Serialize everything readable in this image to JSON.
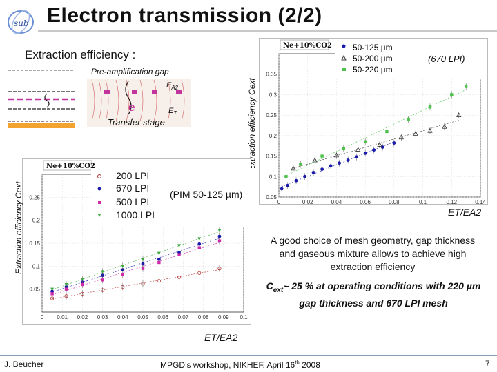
{
  "slide": {
    "title": "Electron transmission (2/2)",
    "subtitle": "Extraction efficiency :",
    "diagram": {
      "preamp_label": "Pre-amplification gap",
      "ea2_label": "E",
      "ea2_sub": "A2",
      "electron_label": "e",
      "et_label": "E",
      "et_sub": "T",
      "transfer_label": "Transfer stage"
    },
    "text_block_1": "A good choice of mesh geometry, gap thickness and gaseous mixture allows to achieve high extraction efficiency",
    "text_block_2_a": "C",
    "text_block_2_sub": "ext",
    "text_block_2_b": "~ 25 % at operating conditions with 220 µm gap thickness and 670 LPI mesh",
    "footer_left": "J. Beucher",
    "footer_center": "MPGD’s workshop, NIKHEF, April 16",
    "footer_center_sup": "th",
    "footer_center_year": " 2008",
    "page_number": "7"
  },
  "chart_data": [
    {
      "type": "scatter",
      "title": "Ne+10%CO2",
      "xlabel": "ET/EA2",
      "ylabel": "Extraction efficiency Cext",
      "xlim": [
        0,
        0.14
      ],
      "ylim": [
        0.05,
        0.4
      ],
      "x_ticks": [
        "0",
        "0.02",
        "0.04",
        "0.06",
        "0.08",
        "0.1",
        "0.12",
        "0.14"
      ],
      "y_ticks": [
        "0.35",
        "0.3",
        "0.25",
        "0.2",
        "0.15",
        "0.1",
        "0.05"
      ],
      "legend_note": "(670 LPI)",
      "series": [
        {
          "name": "50-125 µm",
          "color": "#1a1aa8",
          "marker": "circle",
          "x": [
            0.002,
            0.006,
            0.012,
            0.018,
            0.024,
            0.03,
            0.036,
            0.042,
            0.048,
            0.054,
            0.06,
            0.066,
            0.072,
            0.08
          ],
          "y": [
            0.07,
            0.078,
            0.09,
            0.1,
            0.11,
            0.118,
            0.126,
            0.133,
            0.14,
            0.148,
            0.157,
            0.165,
            0.172,
            0.182
          ]
        },
        {
          "name": "50-200 µm",
          "color": "#333333",
          "marker": "triangle",
          "x": [
            0.01,
            0.025,
            0.04,
            0.055,
            0.07,
            0.085,
            0.095,
            0.105,
            0.115,
            0.125
          ],
          "y": [
            0.12,
            0.14,
            0.152,
            0.166,
            0.178,
            0.196,
            0.205,
            0.212,
            0.222,
            0.25
          ]
        },
        {
          "name": "50-220 µm",
          "color": "#4cc24c",
          "marker": "square",
          "x": [
            0.005,
            0.015,
            0.03,
            0.045,
            0.06,
            0.075,
            0.09,
            0.105,
            0.12,
            0.13
          ],
          "y": [
            0.1,
            0.13,
            0.15,
            0.168,
            0.185,
            0.21,
            0.24,
            0.27,
            0.3,
            0.32
          ]
        }
      ]
    },
    {
      "type": "scatter",
      "title": "Ne+10%CO2",
      "xlabel": "ET/EA2",
      "ylabel": "Extraction efficiency Cext",
      "xlim": [
        0,
        0.1
      ],
      "ylim": [
        0,
        0.3
      ],
      "x_ticks": [
        "0",
        "0.01",
        "0.02",
        "0.03",
        "0.04",
        "0.05",
        "0.06",
        "0.07",
        "0.08",
        "0.09",
        "0.1"
      ],
      "y_ticks": [
        "0.25",
        "0.2",
        "0.15",
        "0.1",
        "0.05"
      ],
      "legend_note": "(PIM 50-125 µm)",
      "series": [
        {
          "name": "200 LPI",
          "color": "#b03030",
          "marker": "circle-open",
          "x": [
            0.005,
            0.012,
            0.02,
            0.03,
            0.04,
            0.05,
            0.058,
            0.068,
            0.078,
            0.088
          ],
          "y": [
            0.03,
            0.035,
            0.04,
            0.048,
            0.055,
            0.062,
            0.068,
            0.076,
            0.085,
            0.095
          ]
        },
        {
          "name": "670 LPI",
          "color": "#1a1aa8",
          "marker": "circle",
          "x": [
            0.005,
            0.012,
            0.02,
            0.03,
            0.04,
            0.05,
            0.058,
            0.068,
            0.078,
            0.088
          ],
          "y": [
            0.045,
            0.055,
            0.065,
            0.08,
            0.092,
            0.105,
            0.115,
            0.13,
            0.148,
            0.165
          ]
        },
        {
          "name": "500 LPI",
          "color": "#cc2aa8",
          "marker": "square",
          "x": [
            0.005,
            0.012,
            0.02,
            0.03,
            0.04,
            0.05,
            0.058,
            0.068,
            0.078,
            0.088
          ],
          "y": [
            0.04,
            0.05,
            0.06,
            0.07,
            0.082,
            0.095,
            0.108,
            0.125,
            0.14,
            0.155
          ]
        },
        {
          "name": "1000 LPI",
          "color": "#3aa83a",
          "marker": "triangle-down",
          "x": [
            0.005,
            0.012,
            0.02,
            0.03,
            0.04,
            0.05,
            0.058,
            0.068,
            0.078,
            0.088
          ],
          "y": [
            0.05,
            0.06,
            0.072,
            0.088,
            0.1,
            0.115,
            0.128,
            0.145,
            0.16,
            0.178
          ]
        }
      ]
    }
  ]
}
